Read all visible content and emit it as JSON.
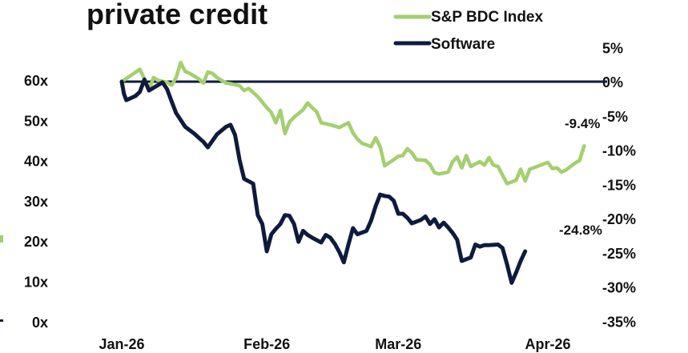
{
  "chart_data": {
    "type": "line",
    "title": "private credit",
    "legend": [
      {
        "name": "S&P BDC Index",
        "color": "#a4cf6e"
      },
      {
        "name": "Software",
        "color": "#0e1b3d"
      }
    ],
    "left_axis": {
      "ticks": [
        "60x",
        "50x",
        "40x",
        "30x",
        "20x",
        "10x",
        "0x"
      ]
    },
    "right_axis": {
      "ticks": [
        "5%",
        "0%",
        "-5%",
        "-10%",
        "-15%",
        "-20%",
        "-25%",
        "-30%",
        "-35%"
      ],
      "range": [
        -35,
        5
      ]
    },
    "x_ticks": [
      "Jan-26",
      "Feb-26",
      "Mar-26",
      "Apr-26"
    ],
    "x_range": [
      0,
      100
    ],
    "x_tick_positions": [
      0,
      32,
      61,
      94
    ],
    "reference_line": 0,
    "series": [
      {
        "name": "S&P BDC Index",
        "color": "#a4cf6e",
        "end_label": "-9.4%",
        "values": [
          [
            0,
            0
          ],
          [
            2,
            0.9
          ],
          [
            4,
            1.8
          ],
          [
            5,
            0.4
          ],
          [
            6,
            -1.3
          ],
          [
            7,
            0.6
          ],
          [
            8,
            0.2
          ],
          [
            10,
            -0.1
          ],
          [
            11,
            -0.5
          ],
          [
            12,
            0.6
          ],
          [
            13,
            2.8
          ],
          [
            14,
            1.5
          ],
          [
            15,
            1.2
          ],
          [
            17,
            0.4
          ],
          [
            18,
            -0.2
          ],
          [
            19,
            1.4
          ],
          [
            20,
            1.2
          ],
          [
            21,
            0.6
          ],
          [
            22,
            0.2
          ],
          [
            23,
            -0.2
          ],
          [
            24,
            -0.3
          ],
          [
            26,
            -0.6
          ],
          [
            27,
            -1.3
          ],
          [
            28,
            -1.0
          ],
          [
            30,
            -2.2
          ],
          [
            31,
            -3.0
          ],
          [
            32,
            -3.8
          ],
          [
            33,
            -4.5
          ],
          [
            34,
            -6.0
          ],
          [
            35,
            -4.2
          ],
          [
            36,
            -7.6
          ],
          [
            37,
            -5.9
          ],
          [
            38,
            -5.2
          ],
          [
            40,
            -4.1
          ],
          [
            41,
            -3.1
          ],
          [
            42,
            -3.8
          ],
          [
            43,
            -4.4
          ],
          [
            44,
            -6.0
          ],
          [
            46,
            -6.3
          ],
          [
            48,
            -6.7
          ],
          [
            50,
            -6.0
          ],
          [
            51,
            -7.5
          ],
          [
            52,
            -8.4
          ],
          [
            53,
            -9.0
          ],
          [
            55,
            -9.5
          ],
          [
            56,
            -8.2
          ],
          [
            57,
            -9.5
          ],
          [
            58,
            -12.3
          ],
          [
            60,
            -11.4
          ],
          [
            61,
            -10.9
          ],
          [
            62,
            -10.8
          ],
          [
            63,
            -9.8
          ],
          [
            64,
            -10.4
          ],
          [
            65,
            -11.4
          ],
          [
            67,
            -11.5
          ],
          [
            68,
            -12.1
          ],
          [
            69,
            -13.3
          ],
          [
            70,
            -13.5
          ],
          [
            72,
            -13.2
          ],
          [
            73,
            -11.7
          ],
          [
            74,
            -11.0
          ],
          [
            75,
            -12.6
          ],
          [
            76,
            -10.8
          ],
          [
            77,
            -12.4
          ],
          [
            79,
            -11.7
          ],
          [
            80,
            -12.2
          ],
          [
            81,
            -11.1
          ],
          [
            82,
            -12.2
          ],
          [
            83,
            -12.4
          ],
          [
            85,
            -14.9
          ],
          [
            87,
            -14.4
          ],
          [
            88,
            -12.8
          ],
          [
            89,
            -14.5
          ],
          [
            90,
            -12.8
          ],
          [
            92,
            -12.3
          ],
          [
            94,
            -11.8
          ],
          [
            95,
            -12.7
          ],
          [
            96,
            -12.6
          ],
          [
            97,
            -13.2
          ],
          [
            98,
            -12.9
          ],
          [
            100,
            -11.9
          ],
          [
            101,
            -11.5
          ],
          [
            102,
            -9.4
          ]
        ]
      },
      {
        "name": "Software",
        "color": "#0e1b3d",
        "end_label": "-24.8%",
        "values": [
          [
            0,
            0
          ],
          [
            0.5,
            -1.8
          ],
          [
            1,
            -2.7
          ],
          [
            3,
            -2.1
          ],
          [
            4,
            -1.5
          ],
          [
            5,
            0.3
          ],
          [
            6,
            -1.3
          ],
          [
            7,
            -0.9
          ],
          [
            8,
            -0.5
          ],
          [
            9,
            -0.1
          ],
          [
            10,
            -1.1
          ],
          [
            11,
            -2.9
          ],
          [
            12,
            -4.6
          ],
          [
            13,
            -5.6
          ],
          [
            14,
            -6.6
          ],
          [
            16,
            -7.6
          ],
          [
            18,
            -8.8
          ],
          [
            19,
            -9.6
          ],
          [
            21,
            -7.7
          ],
          [
            23,
            -6.6
          ],
          [
            24,
            -6.3
          ],
          [
            25,
            -7.8
          ],
          [
            26,
            -11.5
          ],
          [
            27,
            -14.2
          ],
          [
            29,
            -14.9
          ],
          [
            30,
            -19.5
          ],
          [
            31,
            -20.8
          ],
          [
            32,
            -24.8
          ],
          [
            33,
            -22.3
          ],
          [
            34,
            -21.5
          ],
          [
            35,
            -20.8
          ],
          [
            36,
            -19.5
          ],
          [
            37,
            -19.6
          ],
          [
            38,
            -20.8
          ],
          [
            39,
            -23.4
          ],
          [
            40,
            -21.8
          ],
          [
            41,
            -22.4
          ],
          [
            42,
            -22.8
          ],
          [
            44,
            -23.5
          ],
          [
            45,
            -22.4
          ],
          [
            46,
            -22.8
          ],
          [
            47,
            -23.7
          ],
          [
            48,
            -24.9
          ],
          [
            49,
            -26.4
          ],
          [
            50,
            -23.8
          ],
          [
            51,
            -21.4
          ],
          [
            52,
            -22.3
          ],
          [
            54,
            -21.8
          ],
          [
            55,
            -20.3
          ],
          [
            56,
            -18.2
          ],
          [
            57,
            -16.5
          ],
          [
            58,
            -16.7
          ],
          [
            59,
            -16.8
          ],
          [
            60,
            -17.4
          ],
          [
            61,
            -19.3
          ],
          [
            62,
            -19.3
          ],
          [
            63,
            -19.9
          ],
          [
            64,
            -20.7
          ],
          [
            66,
            -20.2
          ],
          [
            67,
            -19.7
          ],
          [
            68,
            -20.8
          ],
          [
            69,
            -20.1
          ],
          [
            70,
            -21.3
          ],
          [
            71,
            -20.6
          ],
          [
            72,
            -21.3
          ],
          [
            73,
            -22.1
          ],
          [
            74,
            -23.1
          ],
          [
            75,
            -26.2
          ],
          [
            77,
            -25.7
          ],
          [
            78,
            -23.8
          ],
          [
            79,
            -24.1
          ],
          [
            80,
            -23.9
          ],
          [
            81,
            -23.9
          ],
          [
            83,
            -23.8
          ],
          [
            84,
            -24.3
          ],
          [
            85,
            -26.7
          ],
          [
            86,
            -29.4
          ],
          [
            87,
            -27.9
          ],
          [
            88,
            -26.2
          ],
          [
            89,
            -24.8
          ]
        ]
      }
    ]
  }
}
